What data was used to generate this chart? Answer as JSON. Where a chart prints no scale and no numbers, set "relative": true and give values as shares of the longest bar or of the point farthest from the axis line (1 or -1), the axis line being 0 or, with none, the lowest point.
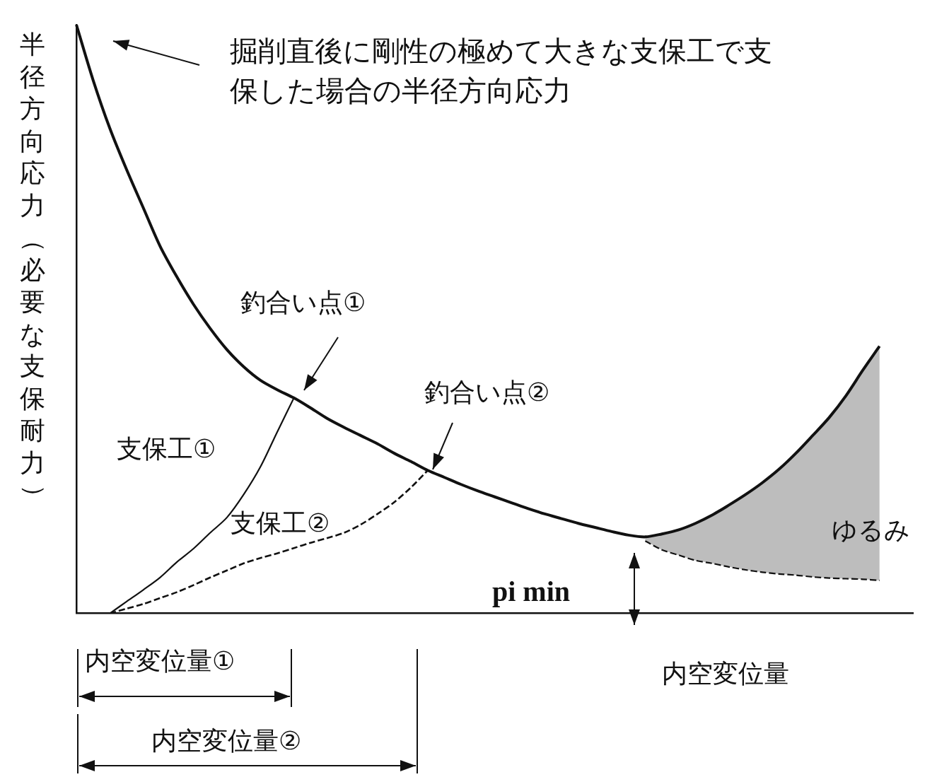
{
  "chart_data": {
    "type": "line",
    "relative": true,
    "xlabel": "内空変位量",
    "ylabel": "半径方向応力（必要な支保耐力）",
    "categories": [
      null,
      null,
      null,
      null,
      null,
      null,
      null,
      null,
      null,
      null,
      null,
      null,
      null,
      null,
      null,
      null,
      null,
      null,
      null,
      null,
      null,
      null,
      null,
      null,
      null,
      null,
      null,
      null,
      null,
      null,
      null,
      null,
      null,
      null,
      null,
      null,
      null,
      null,
      null,
      null,
      null,
      null,
      null,
      null,
      null,
      null,
      null,
      null,
      null,
      null,
      null
    ],
    "legend": false,
    "grid": false,
    "marker": "none",
    "annotations": [
      "掘削直後に剛性の極めて大きな支保工で支保した場合の半径方向応力",
      "釣合い点①",
      "釣合い点②",
      "ゆるみ",
      "pi min",
      "内空変位量①",
      "内空変位量②"
    ],
    "series": [
      {
        "color": "#111111",
        "line_style": "solid",
        "values": [
          1,
          0.906,
          0.824,
          0.754,
          0.689,
          0.624,
          0.572,
          0.525,
          0.484,
          0.448,
          0.419,
          0.396,
          0.38,
          0.366,
          0.349,
          0.331,
          0.316,
          0.302,
          0.288,
          0.272,
          0.258,
          0.243,
          0.231,
          0.219,
          0.208,
          0.198,
          0.188,
          0.178,
          0.169,
          0.161,
          0.153,
          0.146,
          0.139,
          0.133,
          0.13,
          0.135,
          0.142,
          0.153,
          0.167,
          0.184,
          0.202,
          0.222,
          0.245,
          0.272,
          0.302,
          0.333,
          0.37,
          0.413,
          0.454,
          null,
          null
        ],
        "upper": [
          null,
          null,
          null,
          null,
          null,
          null,
          null,
          null,
          null,
          null,
          null,
          null,
          null,
          null,
          null,
          null,
          null,
          null,
          null,
          null,
          null,
          null,
          null,
          null,
          null,
          null,
          null,
          null,
          null,
          null,
          null,
          null,
          null,
          null,
          0.13,
          0.135,
          0.142,
          0.153,
          0.167,
          0.184,
          0.202,
          0.222,
          0.245,
          0.272,
          0.302,
          0.333,
          0.37,
          0.413,
          0.454,
          null,
          null
        ],
        "lower": [
          null,
          null,
          null,
          null,
          null,
          null,
          null,
          null,
          null,
          null,
          null,
          null,
          null,
          null,
          null,
          null,
          null,
          null,
          null,
          null,
          null,
          null,
          null,
          null,
          null,
          null,
          null,
          null,
          null,
          null,
          null,
          null,
          null,
          null,
          0.123,
          0.108,
          0.099,
          0.09,
          0.085,
          0.079,
          0.074,
          0.07,
          0.067,
          0.065,
          0.062,
          0.06,
          0.059,
          0.058,
          0.056,
          null,
          null
        ]
      },
      {
        "name": "支保工①",
        "color": "#111111",
        "line_style": "solid",
        "values": [
          null,
          null,
          0,
          0.02,
          0.04,
          0.061,
          0.087,
          0.11,
          0.137,
          0.163,
          0.202,
          0.249,
          0.308,
          0.366,
          null,
          null,
          null,
          null,
          null,
          null,
          null,
          null,
          null,
          null,
          null,
          null,
          null,
          null,
          null,
          null,
          null,
          null,
          null,
          null,
          null,
          null,
          null,
          null,
          null,
          null,
          null,
          null,
          null,
          null,
          null,
          null,
          null,
          null,
          null,
          null,
          null
        ]
      },
      {
        "color": "#111111",
        "line_style": "dashed",
        "values": [
          null,
          null,
          null,
          null,
          null,
          null,
          null,
          null,
          null,
          null,
          null,
          null,
          null,
          null,
          null,
          null,
          null,
          null,
          null,
          null,
          null,
          null,
          null,
          null,
          null,
          null,
          null,
          null,
          null,
          null,
          null,
          null,
          null,
          null,
          0.123,
          0.108,
          0.099,
          0.09,
          0.085,
          0.079,
          0.074,
          0.07,
          0.067,
          0.065,
          0.062,
          0.06,
          0.059,
          0.058,
          0.056,
          null,
          null
        ]
      },
      {
        "name": "支保工②",
        "color": "#111111",
        "line_style": "dashed",
        "values": [
          null,
          null,
          0,
          0.008,
          0.016,
          0.026,
          0.036,
          0.048,
          0.061,
          0.073,
          0.085,
          0.094,
          0.102,
          0.111,
          0.12,
          0.128,
          0.137,
          0.151,
          0.169,
          0.189,
          0.214,
          0.243,
          null,
          null,
          null,
          null,
          null,
          null,
          null,
          null,
          null,
          null,
          null,
          null,
          null,
          null,
          null,
          null,
          null,
          null,
          null,
          null,
          null,
          null,
          null,
          null,
          null,
          null,
          null,
          null,
          null
        ]
      }
    ]
  }
}
